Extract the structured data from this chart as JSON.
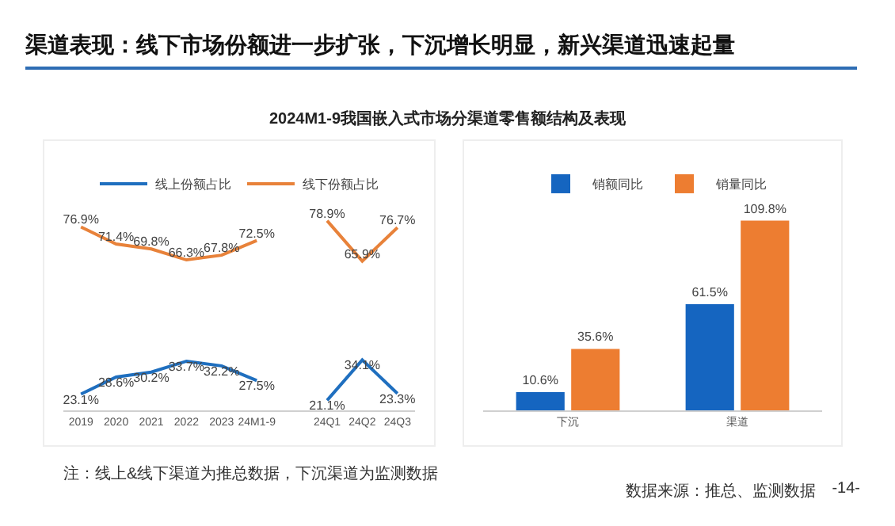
{
  "chart_data": [
    {
      "type": "line",
      "title": "渠道表现：线下市场份额进一步扩张，下沉增长明显，新兴渠道迅速起量",
      "subtitle": "2024M1-9我国嵌入式市场分渠道零售额结构及表现",
      "categories": [
        "2019",
        "2020",
        "2021",
        "2022",
        "2023",
        "24M1-9",
        null,
        "24Q1",
        "24Q2",
        "24Q3"
      ],
      "series": [
        {
          "name": "线上份额占比",
          "color": "#1f6fbf",
          "values": [
            23.1,
            28.6,
            30.2,
            33.7,
            32.2,
            27.5,
            null,
            21.1,
            34.1,
            23.3
          ],
          "value_labels": [
            "23.1%",
            "28.6%",
            "30.2%",
            "33.7%",
            "32.2%",
            "27.5%",
            null,
            "21.1%",
            "34.1%",
            "23.3%"
          ]
        },
        {
          "name": "线下份额占比",
          "color": "#e8823a",
          "values": [
            76.9,
            71.4,
            69.8,
            66.3,
            67.8,
            72.5,
            null,
            78.9,
            65.9,
            76.7
          ],
          "value_labels": [
            "76.9%",
            "71.4%",
            "69.8%",
            "66.3%",
            "67.8%",
            "72.5%",
            null,
            "78.9%",
            "65.9%",
            "76.7%"
          ]
        }
      ],
      "tick_labels": "x",
      "grid": false,
      "legend": "top",
      "line_style": "solid",
      "annotations": [
        "注：线上&线下渠道为推总数据，下沉渠道为监测数据"
      ]
    },
    {
      "type": "bar",
      "categories": [
        "下沉",
        "渠道"
      ],
      "series": [
        {
          "name": "销额同比",
          "color": "#1565c0",
          "values": [
            10.6,
            61.5
          ],
          "value_labels": [
            "10.6%",
            "61.5%"
          ]
        },
        {
          "name": "销量同比",
          "color": "#ed7d31",
          "values": [
            35.6,
            109.8
          ],
          "value_labels": [
            "35.6%",
            "109.8%"
          ]
        }
      ],
      "tick_labels": "x",
      "grid": false,
      "legend": "top",
      "annotations": [
        "数据来源：推总、监测数据",
        "-14-"
      ]
    }
  ]
}
